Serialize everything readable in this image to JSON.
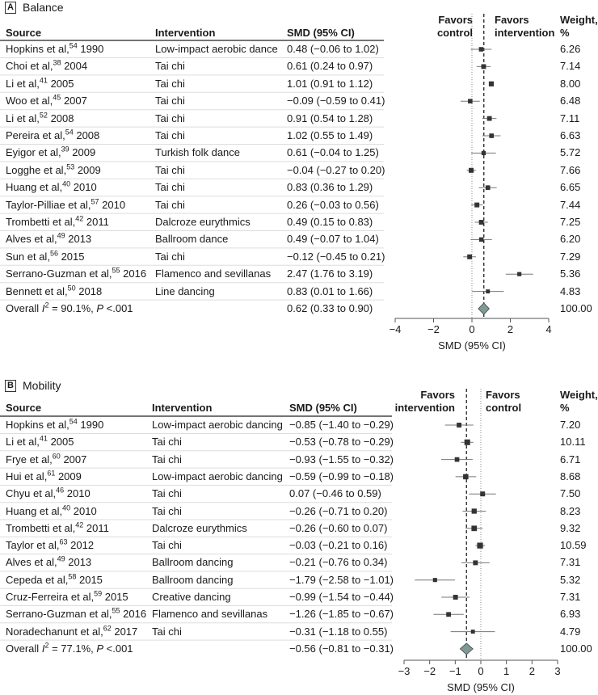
{
  "chart_data": [
    {
      "type": "forest",
      "panel_letter": "A",
      "title": "Balance",
      "columns": {
        "source": "Source",
        "intervention": "Intervention",
        "smd": "SMD (95% CI)",
        "weight": "Weight, %",
        "weight_l1": "Weight,",
        "weight_l2": "%"
      },
      "favors_left": [
        "Favors",
        "control"
      ],
      "favors_right": [
        "Favors",
        "intervention"
      ],
      "xlabel": "SMD (95% CI)",
      "xlim": [
        -4,
        4
      ],
      "xticks": [
        -4,
        -2,
        0,
        2,
        4
      ],
      "studies": [
        {
          "author": "Hopkins et al,",
          "ref": "54",
          "year": "1990",
          "intervention": "Low-impact aerobic dance",
          "smd": 0.48,
          "lo": -0.06,
          "hi": 1.02,
          "ci_text": "0.48 (−0.06 to 1.02)",
          "weight": "6.26"
        },
        {
          "author": "Choi et al,",
          "ref": "38",
          "year": "2004",
          "intervention": "Tai chi",
          "smd": 0.61,
          "lo": 0.24,
          "hi": 0.97,
          "ci_text": "0.61 (0.24 to 0.97)",
          "weight": "7.14"
        },
        {
          "author": "Li et al,",
          "ref": "41",
          "year": "2005",
          "intervention": "Tai chi",
          "smd": 1.01,
          "lo": 0.91,
          "hi": 1.12,
          "ci_text": "1.01 (0.91 to 1.12)",
          "weight": "8.00"
        },
        {
          "author": "Woo et al,",
          "ref": "45",
          "year": "2007",
          "intervention": "Tai chi",
          "smd": -0.09,
          "lo": -0.59,
          "hi": 0.41,
          "ci_text": "−0.09 (−0.59 to 0.41)",
          "weight": "6.48"
        },
        {
          "author": "Li et al,",
          "ref": "52",
          "year": "2008",
          "intervention": "Tai chi",
          "smd": 0.91,
          "lo": 0.54,
          "hi": 1.28,
          "ci_text": "0.91 (0.54 to 1.28)",
          "weight": "7.11"
        },
        {
          "author": "Pereira et al,",
          "ref": "54",
          "year": "2008",
          "intervention": "Tai chi",
          "smd": 1.02,
          "lo": 0.55,
          "hi": 1.49,
          "ci_text": "1.02 (0.55 to 1.49)",
          "weight": "6.63"
        },
        {
          "author": "Eyigor et al,",
          "ref": "39",
          "year": "2009",
          "intervention": "Turkish folk dance",
          "smd": 0.61,
          "lo": -0.04,
          "hi": 1.25,
          "ci_text": "0.61 (−0.04 to 1.25)",
          "weight": "5.72"
        },
        {
          "author": "Logghe et al,",
          "ref": "53",
          "year": "2009",
          "intervention": "Tai chi",
          "smd": -0.04,
          "lo": -0.27,
          "hi": 0.2,
          "ci_text": "−0.04 (−0.27 to 0.20)",
          "weight": "7.66"
        },
        {
          "author": "Huang et al,",
          "ref": "40",
          "year": "2010",
          "intervention": "Tai chi",
          "smd": 0.83,
          "lo": 0.36,
          "hi": 1.29,
          "ci_text": "0.83 (0.36 to 1.29)",
          "weight": "6.65"
        },
        {
          "author": "Taylor-Pilliae et al,",
          "ref": "57",
          "year": "2010",
          "intervention": "Tai chi",
          "smd": 0.26,
          "lo": -0.03,
          "hi": 0.56,
          "ci_text": "0.26 (−0.03 to 0.56)",
          "weight": "7.44"
        },
        {
          "author": "Trombetti et al,",
          "ref": "42",
          "year": "2011",
          "intervention": "Dalcroze eurythmics",
          "smd": 0.49,
          "lo": 0.15,
          "hi": 0.83,
          "ci_text": "0.49 (0.15 to 0.83)",
          "weight": "7.25"
        },
        {
          "author": "Alves et al,",
          "ref": "49",
          "year": "2013",
          "intervention": "Ballroom dance",
          "smd": 0.49,
          "lo": -0.07,
          "hi": 1.04,
          "ci_text": "0.49 (−0.07 to 1.04)",
          "weight": "6.20"
        },
        {
          "author": "Sun et al,",
          "ref": "56",
          "year": "2015",
          "intervention": "Tai chi",
          "smd": -0.12,
          "lo": -0.45,
          "hi": 0.21,
          "ci_text": "−0.12 (−0.45 to 0.21)",
          "weight": "7.29"
        },
        {
          "author": "Serrano-Guzman et al,",
          "ref": "55",
          "year": "2016",
          "intervention": "Flamenco and sevillanas",
          "smd": 2.47,
          "lo": 1.76,
          "hi": 3.19,
          "ci_text": "2.47 (1.76 to 3.19)",
          "weight": "5.36"
        },
        {
          "author": "Bennett et al,",
          "ref": "50",
          "year": "2018",
          "intervention": "Line dancing",
          "smd": 0.83,
          "lo": 0.01,
          "hi": 1.66,
          "ci_text": "0.83 (0.01 to 1.66)",
          "weight": "4.83"
        }
      ],
      "overall": {
        "label": "Overall",
        "i2_text": "I",
        "i2_sup": "2",
        "stats": " = 90.1%, ",
        "p_label": "P",
        "p_text": " <.001",
        "smd": 0.62,
        "lo": 0.33,
        "hi": 0.9,
        "ci_text": "0.62 (0.33 to 0.90)",
        "weight": "100.00"
      }
    },
    {
      "type": "forest",
      "panel_letter": "B",
      "title": "Mobility",
      "columns": {
        "source": "Source",
        "intervention": "Intervention",
        "smd": "SMD (95% CI)",
        "weight_l1": "Weight,",
        "weight_l2": "%"
      },
      "favors_left": [
        "Favors",
        "intervention"
      ],
      "favors_right": [
        "Favors",
        "control"
      ],
      "xlabel": "SMD (95% CI)",
      "xlim": [
        -3,
        3
      ],
      "xticks": [
        -3,
        -2,
        -1,
        0,
        1,
        2,
        3
      ],
      "studies": [
        {
          "author": "Hopkins et al,",
          "ref": "54",
          "year": "1990",
          "intervention": "Low-impact aerobic dancing",
          "smd": -0.85,
          "lo": -1.4,
          "hi": -0.29,
          "ci_text": "−0.85 (−1.40 to −0.29)",
          "weight": "7.20"
        },
        {
          "author": "Li et al,",
          "ref": "41",
          "year": "2005",
          "intervention": "Tai chi",
          "smd": -0.53,
          "lo": -0.78,
          "hi": -0.29,
          "ci_text": "−0.53 (−0.78 to −0.29)",
          "weight": "10.11"
        },
        {
          "author": "Frye et al,",
          "ref": "60",
          "year": "2007",
          "intervention": "Tai chi",
          "smd": -0.93,
          "lo": -1.55,
          "hi": -0.32,
          "ci_text": "−0.93 (−1.55 to −0.32)",
          "weight": "6.71"
        },
        {
          "author": "Hui et al,",
          "ref": "61",
          "year": "2009",
          "intervention": "Low-impact aerobic dancing",
          "smd": -0.59,
          "lo": -0.99,
          "hi": -0.18,
          "ci_text": "−0.59 (−0.99 to −0.18)",
          "weight": "8.68"
        },
        {
          "author": "Chyu et al,",
          "ref": "46",
          "year": "2010",
          "intervention": "Tai chi",
          "smd": 0.07,
          "lo": -0.46,
          "hi": 0.59,
          "ci_text": "0.07 (−0.46 to 0.59)",
          "weight": "7.50"
        },
        {
          "author": "Huang et al,",
          "ref": "40",
          "year": "2010",
          "intervention": "Tai chi",
          "smd": -0.26,
          "lo": -0.71,
          "hi": 0.2,
          "ci_text": "−0.26 (−0.71 to 0.20)",
          "weight": "8.23"
        },
        {
          "author": "Trombetti et al,",
          "ref": "42",
          "year": "2011",
          "intervention": "Dalcroze eurythmics",
          "smd": -0.26,
          "lo": -0.6,
          "hi": 0.07,
          "ci_text": "−0.26 (−0.60 to 0.07)",
          "weight": "9.32"
        },
        {
          "author": "Taylor et al,",
          "ref": "63",
          "year": "2012",
          "intervention": "Tai chi",
          "smd": -0.03,
          "lo": -0.21,
          "hi": 0.16,
          "ci_text": "−0.03 (−0.21 to 0.16)",
          "weight": "10.59"
        },
        {
          "author": "Alves et al,",
          "ref": "49",
          "year": "2013",
          "intervention": "Ballroom dancing",
          "smd": -0.21,
          "lo": -0.76,
          "hi": 0.34,
          "ci_text": "−0.21 (−0.76 to 0.34)",
          "weight": "7.31"
        },
        {
          "author": "Cepeda et al,",
          "ref": "58",
          "year": "2015",
          "intervention": "Ballroom dancing",
          "smd": -1.79,
          "lo": -2.58,
          "hi": -1.01,
          "ci_text": "−1.79 (−2.58 to −1.01)",
          "weight": "5.32"
        },
        {
          "author": "Cruz-Ferreira et al,",
          "ref": "59",
          "year": "2015",
          "intervention": "Creative dancing",
          "smd": -0.99,
          "lo": -1.54,
          "hi": -0.44,
          "ci_text": "−0.99 (−1.54 to −0.44)",
          "weight": "7.31"
        },
        {
          "author": "Serrano-Guzman et al,",
          "ref": "55",
          "year": "2016",
          "intervention": "Flamenco and sevillanas",
          "smd": -1.26,
          "lo": -1.85,
          "hi": -0.67,
          "ci_text": "−1.26 (−1.85 to −0.67)",
          "weight": "6.93"
        },
        {
          "author": "Noradechanunt et al,",
          "ref": "62",
          "year": "2017",
          "intervention": "Tai chi",
          "smd": -0.31,
          "lo": -1.18,
          "hi": 0.55,
          "ci_text": "−0.31 (−1.18 to 0.55)",
          "weight": "4.79"
        }
      ],
      "overall": {
        "label": "Overall",
        "i2_text": "I",
        "i2_sup": "2",
        "stats": " = 77.1%, ",
        "p_label": "P",
        "p_text": " <.001",
        "smd": -0.56,
        "lo": -0.81,
        "hi": -0.31,
        "ci_text": "−0.56 (−0.81 to −0.31)",
        "weight": "100.00"
      }
    }
  ],
  "colors": {
    "diamond": "#7f9a94",
    "marker": "#333333",
    "ci_line": "#777777",
    "text": "#1a1a1a"
  }
}
